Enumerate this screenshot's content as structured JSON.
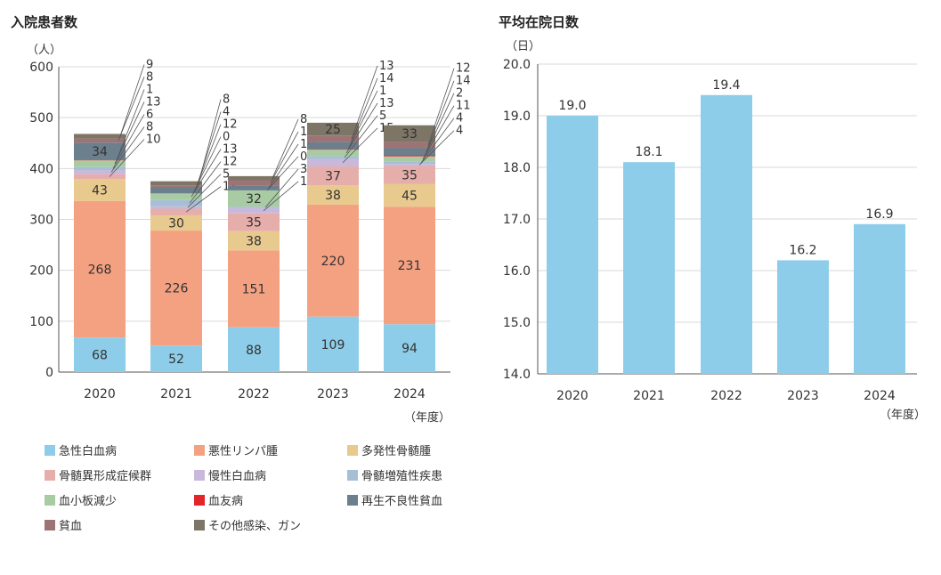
{
  "chart_data": [
    {
      "type": "bar",
      "stacked": true,
      "title": "入院患者数",
      "ylabel": "（人）",
      "xlabel": "（年度）",
      "ylim": [
        0,
        600
      ],
      "yticks": [
        0,
        100,
        200,
        300,
        400,
        500,
        600
      ],
      "categories": [
        "2020",
        "2021",
        "2022",
        "2023",
        "2024"
      ],
      "series": [
        {
          "name": "急性白血病",
          "color": "#8ecde9",
          "values": [
            68,
            52,
            88,
            109,
            94
          ]
        },
        {
          "name": "悪性リンパ腫",
          "color": "#f4a181",
          "values": [
            268,
            226,
            151,
            220,
            231
          ]
        },
        {
          "name": "多発性骨髄腫",
          "color": "#e8c98e",
          "values": [
            43,
            30,
            38,
            38,
            45
          ]
        },
        {
          "name": "骨髄異形成症候群",
          "color": "#e6aeab",
          "values": [
            10,
            13,
            35,
            37,
            35
          ]
        },
        {
          "name": "慢性白血病",
          "color": "#c8b9dc",
          "values": [
            8,
            5,
            10,
            15,
            4
          ]
        },
        {
          "name": "骨髄増殖性疾患",
          "color": "#a7bfd4",
          "values": [
            6,
            12,
            3,
            5,
            4
          ]
        },
        {
          "name": "血小板減少",
          "color": "#a9cba3",
          "values": [
            13,
            13,
            32,
            13,
            11
          ]
        },
        {
          "name": "血友病",
          "color": "#e3252b",
          "values": [
            1,
            0,
            0,
            1,
            2
          ]
        },
        {
          "name": "再生不良性貧血",
          "color": "#6c7f8c",
          "values": [
            34,
            12,
            10,
            14,
            14
          ]
        },
        {
          "name": "貧血",
          "color": "#9c7476",
          "values": [
            8,
            4,
            10,
            13,
            12
          ]
        },
        {
          "name": "その他感染、ガン",
          "color": "#7d7667",
          "values": [
            9,
            8,
            8,
            25,
            33
          ]
        }
      ]
    },
    {
      "type": "bar",
      "title": "平均在院日数",
      "ylabel": "（日）",
      "xlabel": "（年度）",
      "ylim": [
        14.0,
        20.0
      ],
      "yticks": [
        "14.0",
        "15.0",
        "16.0",
        "17.0",
        "18.0",
        "19.0",
        "20.0"
      ],
      "categories": [
        "2020",
        "2021",
        "2022",
        "2023",
        "2024"
      ],
      "values": [
        19.0,
        18.1,
        19.4,
        16.2,
        16.9
      ],
      "value_labels": [
        "19.0",
        "18.1",
        "19.4",
        "16.2",
        "16.9"
      ],
      "color": "#8ecde9"
    }
  ]
}
